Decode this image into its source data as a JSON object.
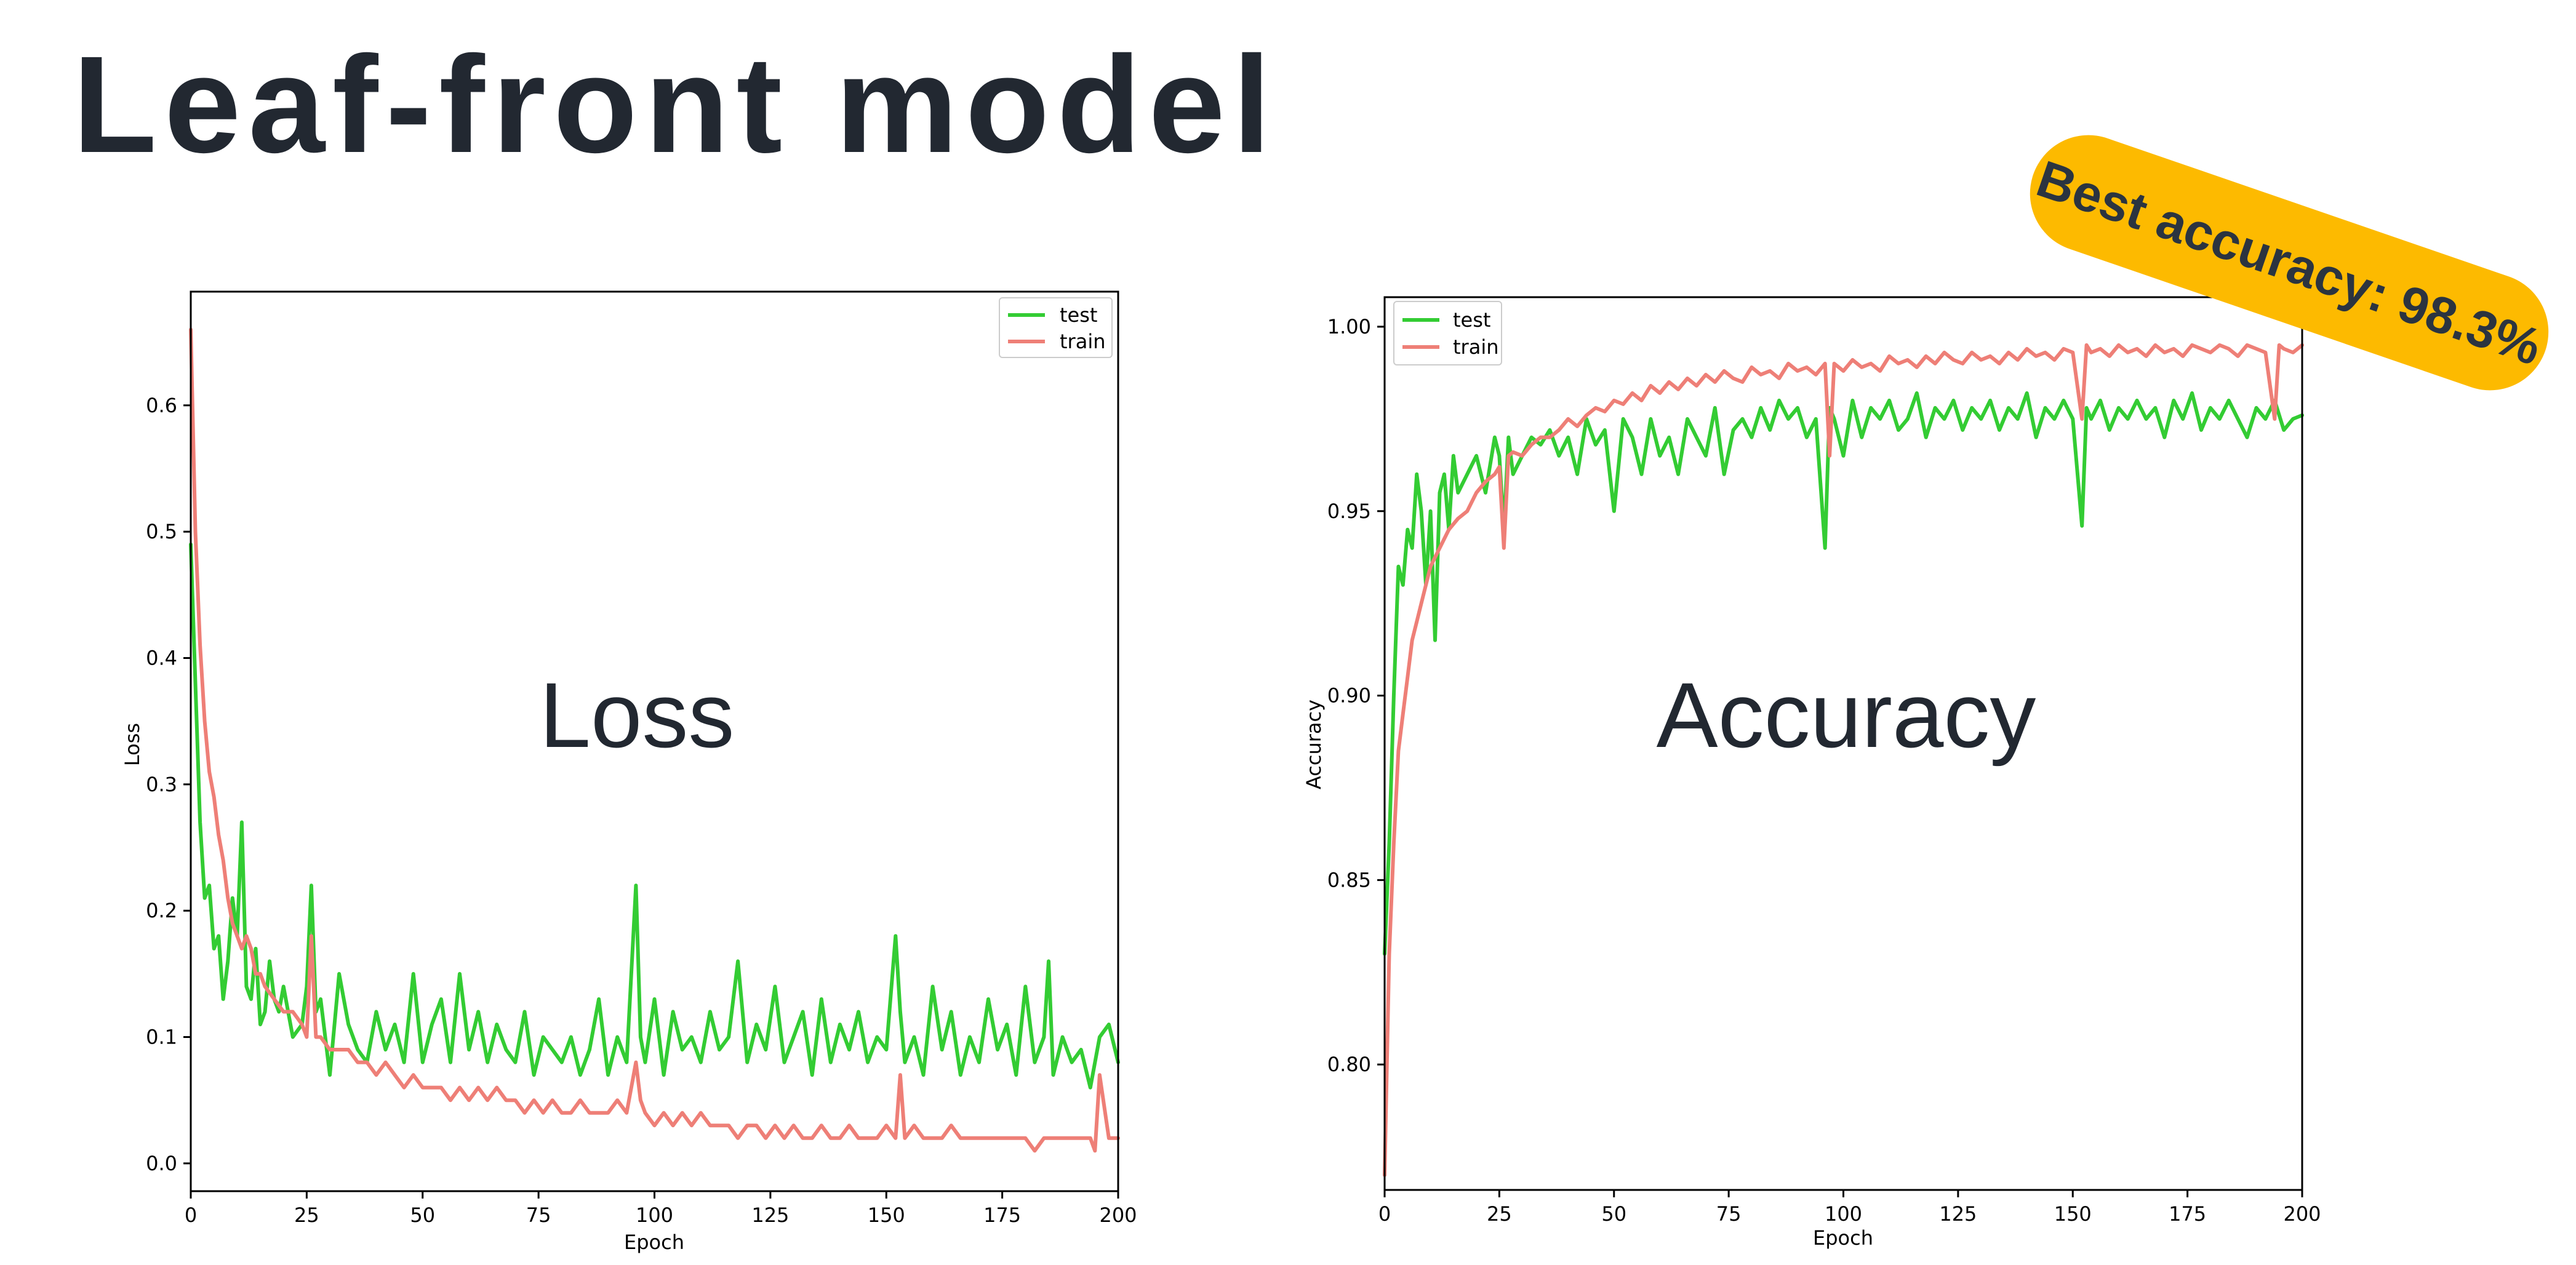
{
  "title": "Leaf-front model",
  "badge": {
    "text": "Best accuracy: 98.3%",
    "color": "#FDBA00"
  },
  "colors": {
    "test": "#33cc33",
    "train": "#ee7f77"
  },
  "chart_data": [
    {
      "type": "line",
      "title": "Loss",
      "xlabel": "Epoch",
      "ylabel": "Loss",
      "xlim": [
        0,
        200
      ],
      "ylim": [
        -0.022,
        0.69
      ],
      "xticks": [
        0,
        25,
        50,
        75,
        100,
        125,
        150,
        175,
        200
      ],
      "yticks": [
        0.0,
        0.1,
        0.2,
        0.3,
        0.4,
        0.5,
        0.6
      ],
      "ytick_labels": [
        "0.0",
        "0.1",
        "0.2",
        "0.3",
        "0.4",
        "0.5",
        "0.6"
      ],
      "legend": "upper right",
      "grid": false,
      "series": [
        {
          "name": "test",
          "x": [
            0,
            1,
            2,
            3,
            4,
            5,
            6,
            7,
            8,
            9,
            10,
            11,
            12,
            13,
            14,
            15,
            16,
            17,
            18,
            19,
            20,
            22,
            24,
            25,
            26,
            27,
            28,
            30,
            32,
            34,
            36,
            38,
            40,
            42,
            44,
            46,
            48,
            50,
            52,
            54,
            56,
            58,
            60,
            62,
            64,
            66,
            68,
            70,
            72,
            74,
            76,
            78,
            80,
            82,
            84,
            86,
            88,
            90,
            92,
            94,
            96,
            97,
            98,
            100,
            102,
            104,
            106,
            108,
            110,
            112,
            114,
            116,
            118,
            120,
            122,
            124,
            126,
            128,
            130,
            132,
            134,
            136,
            138,
            140,
            142,
            144,
            146,
            148,
            150,
            152,
            153,
            154,
            156,
            158,
            160,
            162,
            164,
            166,
            168,
            170,
            172,
            174,
            176,
            178,
            180,
            182,
            184,
            185,
            186,
            188,
            190,
            192,
            194,
            196,
            198,
            200
          ],
          "values": [
            0.49,
            0.38,
            0.27,
            0.21,
            0.22,
            0.17,
            0.18,
            0.13,
            0.16,
            0.21,
            0.18,
            0.27,
            0.14,
            0.13,
            0.17,
            0.11,
            0.12,
            0.16,
            0.13,
            0.12,
            0.14,
            0.1,
            0.11,
            0.14,
            0.22,
            0.12,
            0.13,
            0.07,
            0.15,
            0.11,
            0.09,
            0.08,
            0.12,
            0.09,
            0.11,
            0.08,
            0.15,
            0.08,
            0.11,
            0.13,
            0.08,
            0.15,
            0.09,
            0.12,
            0.08,
            0.11,
            0.09,
            0.08,
            0.12,
            0.07,
            0.1,
            0.09,
            0.08,
            0.1,
            0.07,
            0.09,
            0.13,
            0.07,
            0.1,
            0.08,
            0.22,
            0.1,
            0.08,
            0.13,
            0.07,
            0.12,
            0.09,
            0.1,
            0.08,
            0.12,
            0.09,
            0.1,
            0.16,
            0.08,
            0.11,
            0.09,
            0.14,
            0.08,
            0.1,
            0.12,
            0.07,
            0.13,
            0.08,
            0.11,
            0.09,
            0.12,
            0.08,
            0.1,
            0.09,
            0.18,
            0.12,
            0.08,
            0.1,
            0.07,
            0.14,
            0.09,
            0.12,
            0.07,
            0.1,
            0.08,
            0.13,
            0.09,
            0.11,
            0.07,
            0.14,
            0.08,
            0.1,
            0.16,
            0.07,
            0.1,
            0.08,
            0.09,
            0.06,
            0.1,
            0.11,
            0.08
          ]
        },
        {
          "name": "train",
          "x": [
            0,
            1,
            2,
            3,
            4,
            5,
            6,
            7,
            8,
            9,
            10,
            11,
            12,
            13,
            14,
            15,
            16,
            18,
            20,
            22,
            24,
            25,
            26,
            27,
            28,
            30,
            32,
            34,
            36,
            38,
            40,
            42,
            44,
            46,
            48,
            50,
            52,
            54,
            56,
            58,
            60,
            62,
            64,
            66,
            68,
            70,
            72,
            74,
            76,
            78,
            80,
            82,
            84,
            86,
            88,
            90,
            92,
            94,
            96,
            97,
            98,
            100,
            102,
            104,
            106,
            108,
            110,
            112,
            114,
            116,
            118,
            120,
            122,
            124,
            126,
            128,
            130,
            132,
            134,
            136,
            138,
            140,
            142,
            144,
            146,
            148,
            150,
            152,
            153,
            154,
            156,
            158,
            160,
            162,
            164,
            166,
            168,
            170,
            172,
            174,
            176,
            178,
            180,
            182,
            184,
            186,
            188,
            190,
            192,
            194,
            195,
            196,
            198,
            200
          ],
          "values": [
            0.66,
            0.5,
            0.41,
            0.35,
            0.31,
            0.29,
            0.26,
            0.24,
            0.21,
            0.19,
            0.18,
            0.17,
            0.18,
            0.17,
            0.15,
            0.15,
            0.14,
            0.13,
            0.12,
            0.12,
            0.11,
            0.1,
            0.18,
            0.1,
            0.1,
            0.09,
            0.09,
            0.09,
            0.08,
            0.08,
            0.07,
            0.08,
            0.07,
            0.06,
            0.07,
            0.06,
            0.06,
            0.06,
            0.05,
            0.06,
            0.05,
            0.06,
            0.05,
            0.06,
            0.05,
            0.05,
            0.04,
            0.05,
            0.04,
            0.05,
            0.04,
            0.04,
            0.05,
            0.04,
            0.04,
            0.04,
            0.05,
            0.04,
            0.08,
            0.05,
            0.04,
            0.03,
            0.04,
            0.03,
            0.04,
            0.03,
            0.04,
            0.03,
            0.03,
            0.03,
            0.02,
            0.03,
            0.03,
            0.02,
            0.03,
            0.02,
            0.03,
            0.02,
            0.02,
            0.03,
            0.02,
            0.02,
            0.03,
            0.02,
            0.02,
            0.02,
            0.03,
            0.02,
            0.07,
            0.02,
            0.03,
            0.02,
            0.02,
            0.02,
            0.03,
            0.02,
            0.02,
            0.02,
            0.02,
            0.02,
            0.02,
            0.02,
            0.02,
            0.01,
            0.02,
            0.02,
            0.02,
            0.02,
            0.02,
            0.02,
            0.01,
            0.07,
            0.02,
            0.02
          ]
        }
      ]
    },
    {
      "type": "line",
      "title": "Accuracy",
      "xlabel": "Epoch",
      "ylabel": "Accuracy",
      "xlim": [
        0,
        200
      ],
      "ylim": [
        0.766,
        1.008
      ],
      "xticks": [
        0,
        25,
        50,
        75,
        100,
        125,
        150,
        175,
        200
      ],
      "yticks": [
        0.8,
        0.85,
        0.9,
        0.95,
        1.0
      ],
      "ytick_labels": [
        "0.80",
        "0.85",
        "0.90",
        "0.95",
        "1.00"
      ],
      "legend": "upper left",
      "grid": false,
      "series": [
        {
          "name": "test",
          "x": [
            0,
            1,
            2,
            3,
            4,
            5,
            6,
            7,
            8,
            9,
            10,
            11,
            12,
            13,
            14,
            15,
            16,
            18,
            20,
            22,
            24,
            25,
            26,
            27,
            28,
            30,
            32,
            34,
            36,
            38,
            40,
            42,
            44,
            46,
            48,
            50,
            52,
            54,
            56,
            58,
            60,
            62,
            64,
            66,
            68,
            70,
            72,
            74,
            76,
            78,
            80,
            82,
            84,
            86,
            88,
            90,
            92,
            94,
            96,
            97,
            98,
            100,
            102,
            104,
            106,
            108,
            110,
            112,
            114,
            116,
            118,
            120,
            122,
            124,
            126,
            128,
            130,
            132,
            134,
            136,
            138,
            140,
            142,
            144,
            146,
            148,
            150,
            152,
            153,
            154,
            156,
            158,
            160,
            162,
            164,
            166,
            168,
            170,
            172,
            174,
            176,
            178,
            180,
            182,
            184,
            186,
            188,
            190,
            192,
            194,
            196,
            198,
            200
          ],
          "values": [
            0.83,
            0.86,
            0.9,
            0.935,
            0.93,
            0.945,
            0.94,
            0.96,
            0.95,
            0.93,
            0.95,
            0.915,
            0.955,
            0.96,
            0.945,
            0.965,
            0.955,
            0.96,
            0.965,
            0.955,
            0.97,
            0.965,
            0.945,
            0.97,
            0.96,
            0.965,
            0.97,
            0.968,
            0.972,
            0.965,
            0.97,
            0.96,
            0.975,
            0.968,
            0.972,
            0.95,
            0.975,
            0.97,
            0.96,
            0.975,
            0.965,
            0.97,
            0.96,
            0.975,
            0.97,
            0.965,
            0.978,
            0.96,
            0.972,
            0.975,
            0.97,
            0.978,
            0.972,
            0.98,
            0.975,
            0.978,
            0.97,
            0.975,
            0.94,
            0.978,
            0.975,
            0.965,
            0.98,
            0.97,
            0.978,
            0.975,
            0.98,
            0.972,
            0.975,
            0.982,
            0.97,
            0.978,
            0.975,
            0.98,
            0.972,
            0.978,
            0.975,
            0.98,
            0.972,
            0.978,
            0.975,
            0.982,
            0.97,
            0.978,
            0.975,
            0.98,
            0.975,
            0.946,
            0.978,
            0.975,
            0.98,
            0.972,
            0.978,
            0.975,
            0.98,
            0.975,
            0.978,
            0.97,
            0.98,
            0.975,
            0.982,
            0.972,
            0.978,
            0.975,
            0.98,
            0.975,
            0.97,
            0.978,
            0.975,
            0.98,
            0.972,
            0.975,
            0.976
          ]
        },
        {
          "name": "train",
          "x": [
            0,
            1,
            2,
            3,
            4,
            5,
            6,
            7,
            8,
            9,
            10,
            12,
            14,
            16,
            18,
            20,
            22,
            24,
            25,
            26,
            27,
            28,
            30,
            32,
            34,
            36,
            38,
            40,
            42,
            44,
            46,
            48,
            50,
            52,
            54,
            56,
            58,
            60,
            62,
            64,
            66,
            68,
            70,
            72,
            74,
            76,
            78,
            80,
            82,
            84,
            86,
            88,
            90,
            92,
            94,
            96,
            97,
            98,
            100,
            102,
            104,
            106,
            108,
            110,
            112,
            114,
            116,
            118,
            120,
            122,
            124,
            126,
            128,
            130,
            132,
            134,
            136,
            138,
            140,
            142,
            144,
            146,
            148,
            150,
            152,
            153,
            154,
            156,
            158,
            160,
            162,
            164,
            166,
            168,
            170,
            172,
            174,
            176,
            178,
            180,
            182,
            184,
            186,
            188,
            190,
            192,
            194,
            195,
            196,
            198,
            200
          ],
          "values": [
            0.77,
            0.83,
            0.86,
            0.885,
            0.895,
            0.905,
            0.915,
            0.92,
            0.925,
            0.93,
            0.935,
            0.94,
            0.945,
            0.948,
            0.95,
            0.955,
            0.958,
            0.96,
            0.962,
            0.94,
            0.965,
            0.966,
            0.965,
            0.968,
            0.97,
            0.97,
            0.972,
            0.975,
            0.973,
            0.976,
            0.978,
            0.977,
            0.98,
            0.979,
            0.982,
            0.98,
            0.984,
            0.982,
            0.985,
            0.983,
            0.986,
            0.984,
            0.987,
            0.985,
            0.988,
            0.986,
            0.985,
            0.989,
            0.987,
            0.988,
            0.986,
            0.99,
            0.988,
            0.989,
            0.987,
            0.99,
            0.965,
            0.99,
            0.988,
            0.991,
            0.989,
            0.99,
            0.988,
            0.992,
            0.99,
            0.991,
            0.989,
            0.992,
            0.99,
            0.993,
            0.991,
            0.99,
            0.993,
            0.991,
            0.992,
            0.99,
            0.993,
            0.991,
            0.994,
            0.992,
            0.993,
            0.991,
            0.994,
            0.993,
            0.975,
            0.995,
            0.993,
            0.994,
            0.992,
            0.995,
            0.993,
            0.994,
            0.992,
            0.995,
            0.993,
            0.994,
            0.992,
            0.995,
            0.994,
            0.993,
            0.995,
            0.994,
            0.992,
            0.995,
            0.994,
            0.993,
            0.975,
            0.995,
            0.994,
            0.993,
            0.995
          ]
        }
      ]
    }
  ]
}
